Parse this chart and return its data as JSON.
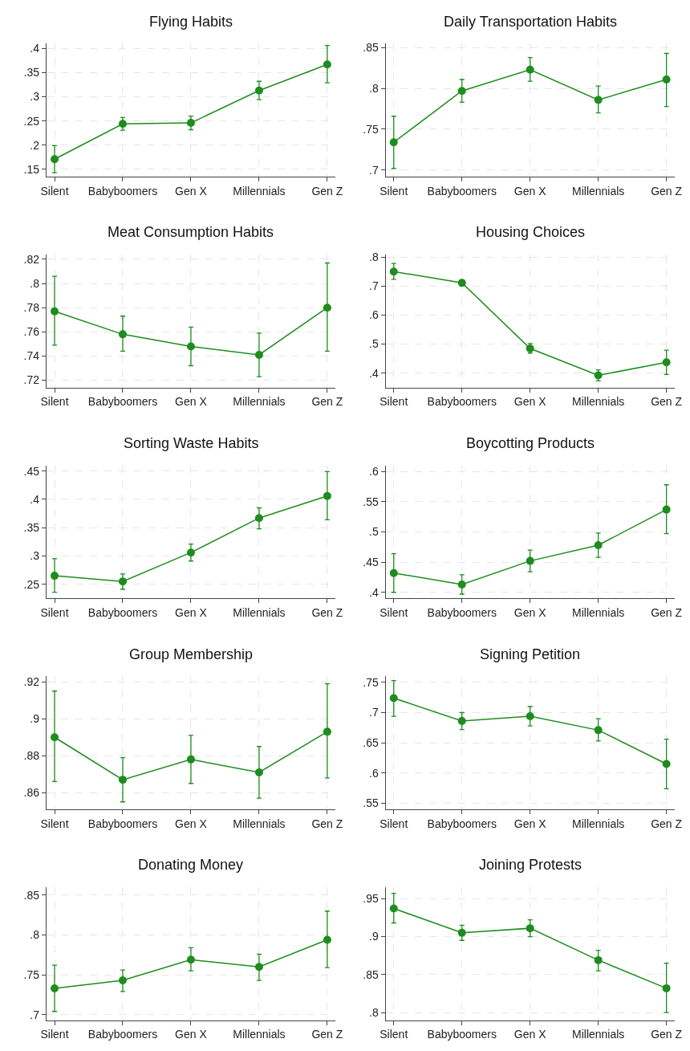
{
  "chart_data": [
    {
      "type": "line",
      "title": "Flying Habits",
      "categories": [
        "Silent",
        "Babyboomers",
        "Gen X",
        "Millennials",
        "Gen Z"
      ],
      "color": "#1e8c1e",
      "marker": "circle",
      "grid": true,
      "values": [
        0.171,
        0.244,
        0.246,
        0.313,
        0.367
      ],
      "errors": [
        [
          0.143,
          0.199
        ],
        [
          0.231,
          0.257
        ],
        [
          0.232,
          0.26
        ],
        [
          0.294,
          0.332
        ],
        [
          0.329,
          0.406
        ]
      ],
      "ylim": [
        0.135,
        0.41
      ],
      "yticks": [
        {
          "value": 0.15,
          "label": ".15"
        },
        {
          "value": 0.2,
          "label": ".2"
        },
        {
          "value": 0.25,
          "label": ".25"
        },
        {
          "value": 0.3,
          "label": ".3"
        },
        {
          "value": 0.35,
          "label": ".35"
        },
        {
          "value": 0.4,
          "label": ".4"
        }
      ]
    },
    {
      "type": "line",
      "title": "Daily Transportation Habits",
      "categories": [
        "Silent",
        "Babyboomers",
        "Gen X",
        "Millennials",
        "Gen Z"
      ],
      "color": "#1e8c1e",
      "marker": "circle",
      "grid": true,
      "values": [
        0.734,
        0.797,
        0.823,
        0.786,
        0.811
      ],
      "errors": [
        [
          0.702,
          0.766
        ],
        [
          0.783,
          0.811
        ],
        [
          0.809,
          0.838
        ],
        [
          0.77,
          0.803
        ],
        [
          0.778,
          0.843
        ]
      ],
      "ylim": [
        0.692,
        0.855
      ],
      "yticks": [
        {
          "value": 0.7,
          "label": ".7"
        },
        {
          "value": 0.75,
          "label": ".75"
        },
        {
          "value": 0.8,
          "label": ".8"
        },
        {
          "value": 0.85,
          "label": ".85"
        }
      ]
    },
    {
      "type": "line",
      "title": "Meat Consumption Habits",
      "categories": [
        "Silent",
        "Babyboomers",
        "Gen X",
        "Millennials",
        "Gen Z"
      ],
      "color": "#1e8c1e",
      "marker": "circle",
      "grid": true,
      "values": [
        0.777,
        0.758,
        0.748,
        0.741,
        0.78
      ],
      "errors": [
        [
          0.749,
          0.806
        ],
        [
          0.744,
          0.773
        ],
        [
          0.732,
          0.764
        ],
        [
          0.723,
          0.759
        ],
        [
          0.744,
          0.817
        ]
      ],
      "ylim": [
        0.714,
        0.824
      ],
      "yticks": [
        {
          "value": 0.72,
          "label": ".72"
        },
        {
          "value": 0.74,
          "label": ".74"
        },
        {
          "value": 0.76,
          "label": ".76"
        },
        {
          "value": 0.78,
          "label": ".78"
        },
        {
          "value": 0.8,
          "label": ".8"
        },
        {
          "value": 0.82,
          "label": ".82"
        }
      ]
    },
    {
      "type": "line",
      "title": "Housing Choices",
      "categories": [
        "Silent",
        "Babyboomers",
        "Gen X",
        "Millennials",
        "Gen Z"
      ],
      "color": "#1e8c1e",
      "marker": "circle",
      "grid": true,
      "values": [
        0.751,
        0.712,
        0.485,
        0.392,
        0.437
      ],
      "errors": [
        [
          0.724,
          0.779
        ],
        [
          0.702,
          0.722
        ],
        [
          0.469,
          0.502
        ],
        [
          0.373,
          0.411
        ],
        [
          0.395,
          0.479
        ]
      ],
      "ylim": [
        0.35,
        0.81
      ],
      "yticks": [
        {
          "value": 0.4,
          "label": ".4"
        },
        {
          "value": 0.5,
          "label": ".5"
        },
        {
          "value": 0.6,
          "label": ".6"
        },
        {
          "value": 0.7,
          "label": ".7"
        },
        {
          "value": 0.8,
          "label": ".8"
        }
      ]
    },
    {
      "type": "line",
      "title": "Sorting Waste Habits",
      "categories": [
        "Silent",
        "Babyboomers",
        "Gen X",
        "Millennials",
        "Gen Z"
      ],
      "color": "#1e8c1e",
      "marker": "circle",
      "grid": true,
      "values": [
        0.265,
        0.255,
        0.306,
        0.367,
        0.406
      ],
      "errors": [
        [
          0.236,
          0.295
        ],
        [
          0.241,
          0.268
        ],
        [
          0.291,
          0.321
        ],
        [
          0.348,
          0.385
        ],
        [
          0.364,
          0.449
        ]
      ],
      "ylim": [
        0.225,
        0.46
      ],
      "yticks": [
        {
          "value": 0.25,
          "label": ".25"
        },
        {
          "value": 0.3,
          "label": ".3"
        },
        {
          "value": 0.35,
          "label": ".35"
        },
        {
          "value": 0.4,
          "label": ".4"
        },
        {
          "value": 0.45,
          "label": ".45"
        }
      ]
    },
    {
      "type": "line",
      "title": "Boycotting Products",
      "categories": [
        "Silent",
        "Babyboomers",
        "Gen X",
        "Millennials",
        "Gen Z"
      ],
      "color": "#1e8c1e",
      "marker": "circle",
      "grid": true,
      "values": [
        0.432,
        0.413,
        0.452,
        0.478,
        0.537
      ],
      "errors": [
        [
          0.4,
          0.464
        ],
        [
          0.397,
          0.429
        ],
        [
          0.434,
          0.47
        ],
        [
          0.458,
          0.498
        ],
        [
          0.497,
          0.578
        ]
      ],
      "ylim": [
        0.39,
        0.61
      ],
      "yticks": [
        {
          "value": 0.4,
          "label": ".4"
        },
        {
          "value": 0.45,
          "label": ".45"
        },
        {
          "value": 0.5,
          "label": ".5"
        },
        {
          "value": 0.55,
          "label": ".55"
        },
        {
          "value": 0.6,
          "label": ".6"
        }
      ]
    },
    {
      "type": "line",
      "title": "Group Membership",
      "categories": [
        "Silent",
        "Babyboomers",
        "Gen X",
        "Millennials",
        "Gen Z"
      ],
      "color": "#1e8c1e",
      "marker": "circle",
      "grid": true,
      "values": [
        0.89,
        0.867,
        0.878,
        0.871,
        0.893
      ],
      "errors": [
        [
          0.866,
          0.915
        ],
        [
          0.855,
          0.879
        ],
        [
          0.865,
          0.891
        ],
        [
          0.857,
          0.885
        ],
        [
          0.868,
          0.919
        ]
      ],
      "ylim": [
        0.851,
        0.923
      ],
      "yticks": [
        {
          "value": 0.86,
          "label": ".86"
        },
        {
          "value": 0.88,
          "label": ".88"
        },
        {
          "value": 0.9,
          "label": ".9"
        },
        {
          "value": 0.92,
          "label": ".92"
        }
      ]
    },
    {
      "type": "line",
      "title": "Signing Petition",
      "categories": [
        "Silent",
        "Babyboomers",
        "Gen X",
        "Millennials",
        "Gen Z"
      ],
      "color": "#1e8c1e",
      "marker": "circle",
      "grid": true,
      "values": [
        0.724,
        0.686,
        0.694,
        0.671,
        0.615
      ],
      "errors": [
        [
          0.694,
          0.753
        ],
        [
          0.672,
          0.7
        ],
        [
          0.678,
          0.71
        ],
        [
          0.653,
          0.69
        ],
        [
          0.574,
          0.656
        ]
      ],
      "ylim": [
        0.54,
        0.76
      ],
      "yticks": [
        {
          "value": 0.55,
          "label": ".55"
        },
        {
          "value": 0.6,
          "label": ".6"
        },
        {
          "value": 0.65,
          "label": ".65"
        },
        {
          "value": 0.7,
          "label": ".7"
        },
        {
          "value": 0.75,
          "label": ".75"
        }
      ]
    },
    {
      "type": "line",
      "title": "Donating Money",
      "categories": [
        "Silent",
        "Babyboomers",
        "Gen X",
        "Millennials",
        "Gen Z"
      ],
      "color": "#1e8c1e",
      "marker": "circle",
      "grid": true,
      "values": [
        0.733,
        0.743,
        0.769,
        0.76,
        0.794
      ],
      "errors": [
        [
          0.704,
          0.762
        ],
        [
          0.729,
          0.756
        ],
        [
          0.755,
          0.784
        ],
        [
          0.743,
          0.776
        ],
        [
          0.759,
          0.83
        ]
      ],
      "ylim": [
        0.693,
        0.86
      ],
      "yticks": [
        {
          "value": 0.7,
          "label": ".7"
        },
        {
          "value": 0.75,
          "label": ".75"
        },
        {
          "value": 0.8,
          "label": ".8"
        },
        {
          "value": 0.85,
          "label": ".85"
        }
      ]
    },
    {
      "type": "line",
      "title": "Joining Protests",
      "categories": [
        "Silent",
        "Babyboomers",
        "Gen X",
        "Millennials",
        "Gen Z"
      ],
      "color": "#1e8c1e",
      "marker": "circle",
      "grid": true,
      "values": [
        0.937,
        0.905,
        0.911,
        0.869,
        0.832
      ],
      "errors": [
        [
          0.918,
          0.957
        ],
        [
          0.895,
          0.915
        ],
        [
          0.9,
          0.922
        ],
        [
          0.855,
          0.882
        ],
        [
          0.8,
          0.865
        ]
      ],
      "ylim": [
        0.79,
        0.965
      ],
      "yticks": [
        {
          "value": 0.8,
          "label": ".8"
        },
        {
          "value": 0.85,
          "label": ".85"
        },
        {
          "value": 0.9,
          "label": ".9"
        },
        {
          "value": 0.95,
          "label": ".95"
        }
      ]
    }
  ]
}
